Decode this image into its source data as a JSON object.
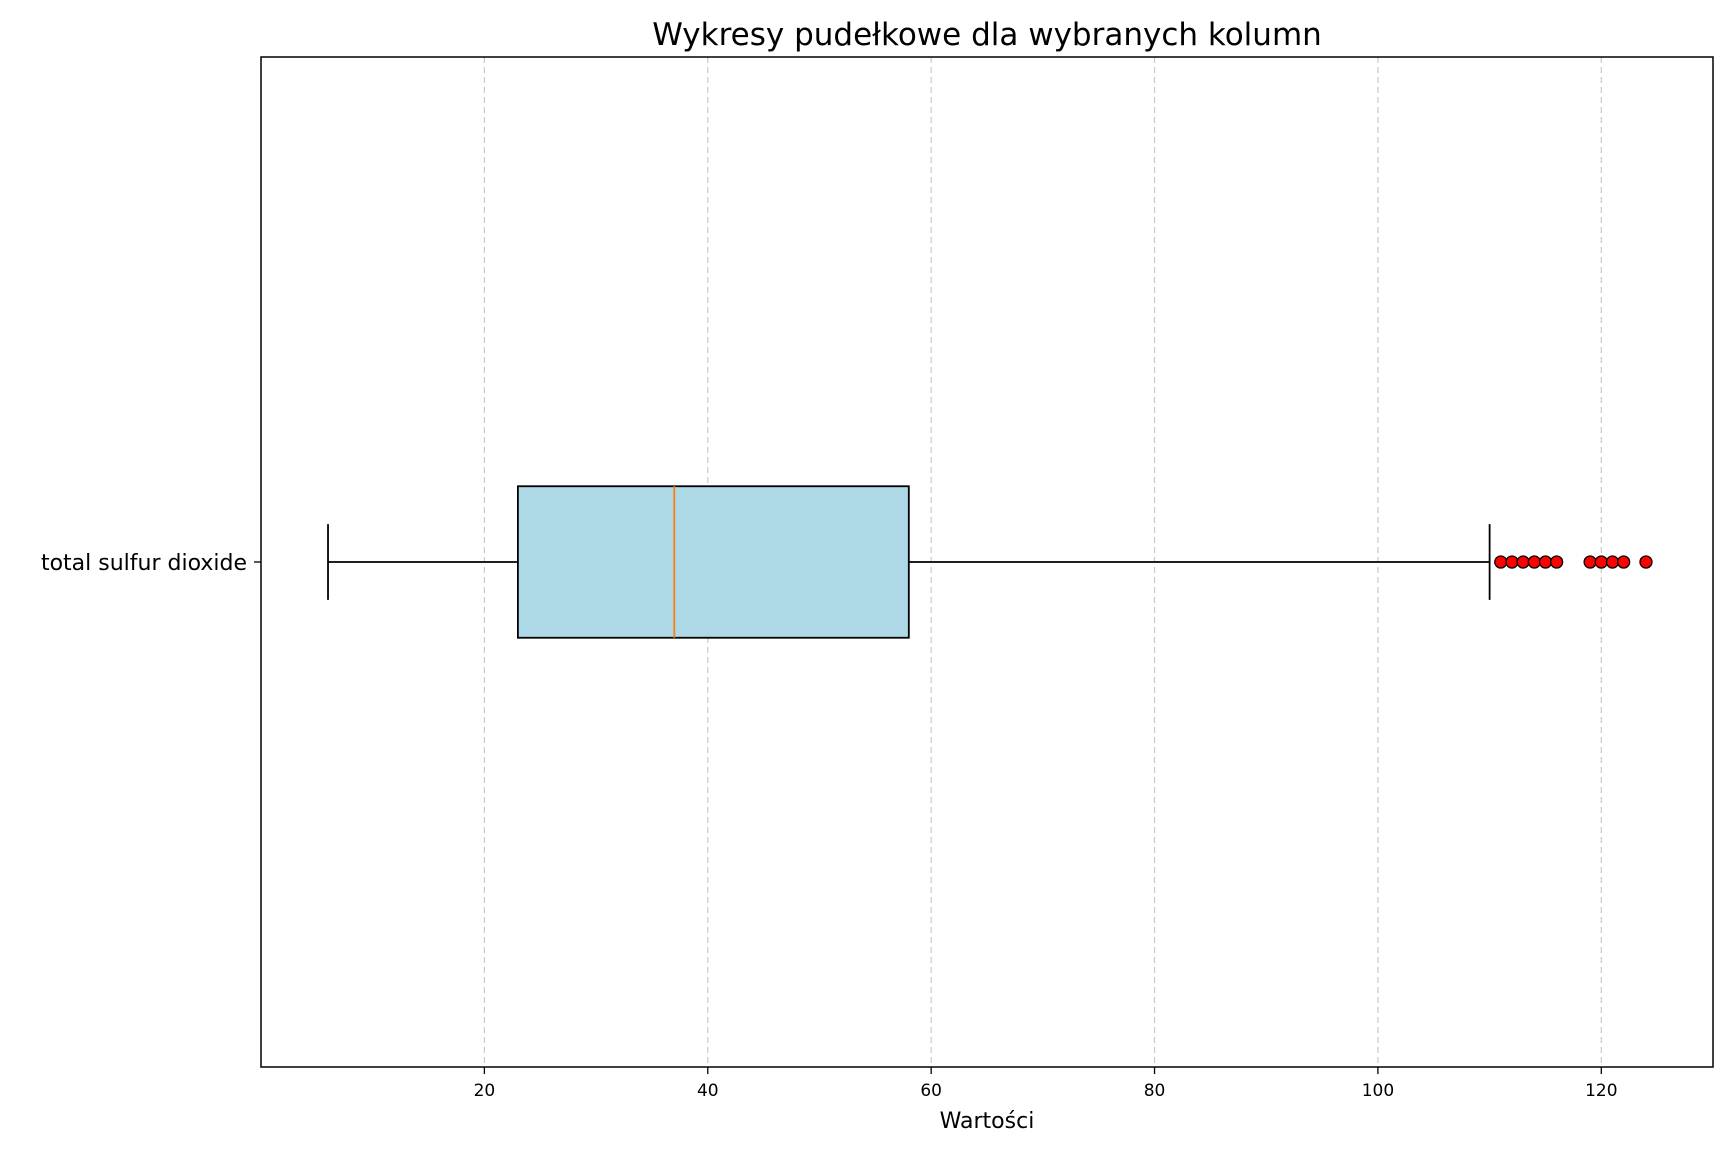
{
  "chart_data": {
    "type": "boxplot",
    "orientation": "horizontal",
    "title": "Wykresy pudełkowe dla wybranych kolumn",
    "xlabel": "Wartości",
    "ylabel": "",
    "xlim": [
      0,
      130
    ],
    "xticks": [
      20,
      40,
      60,
      80,
      100,
      120
    ],
    "grid": {
      "axis": "x",
      "style": "dashed",
      "color": "#c8c8c8"
    },
    "categories": [
      "total sulfur dioxide"
    ],
    "boxes": [
      {
        "name": "total sulfur dioxide",
        "whisker_low": 6,
        "q1": 23,
        "median": 37,
        "q3": 58,
        "whisker_high": 110,
        "outliers": [
          111,
          112,
          113,
          114,
          115,
          116,
          119,
          120,
          121,
          122,
          124
        ]
      }
    ],
    "colors": {
      "box_fill": "#add8e6",
      "box_edge": "#000000",
      "median": "#ff7f0e",
      "whisker": "#000000",
      "outlier_fill": "#ff0000",
      "outlier_edge": "#000000"
    }
  }
}
